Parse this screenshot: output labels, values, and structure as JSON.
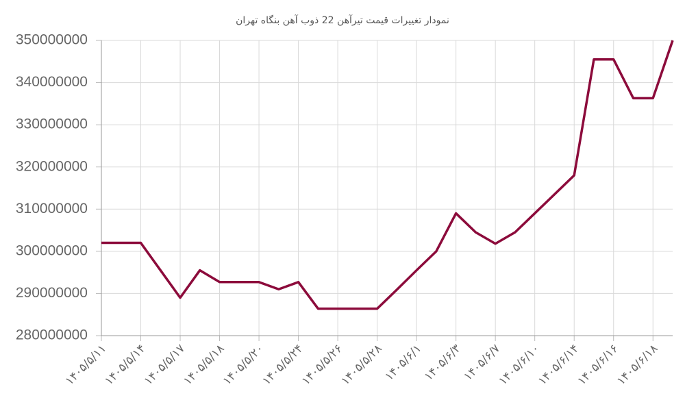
{
  "chart_data": {
    "type": "line",
    "title": "نمودار تغییرات قیمت تیرآهن 22 ذوب آهن بنگاه تهران",
    "categories": [
      "۱۴۰۵/۵/۱۱",
      null,
      "۱۴۰۵/۵/۱۴",
      null,
      "۱۴۰۵/۵/۱۷",
      null,
      "۱۴۰۵/۵/۱۸",
      null,
      "۱۴۰۵/۵/۲۰",
      null,
      "۱۴۰۵/۵/۲۴",
      null,
      "۱۴۰۵/۵/۲۶",
      null,
      "۱۴۰۵/۵/۲۸",
      null,
      "۱۴۰۵/۶/۱",
      null,
      "۱۴۰۵/۶/۳",
      null,
      "۱۴۰۵/۶/۷",
      null,
      "۱۴۰۵/۶/۱۰",
      null,
      "۱۴۰۵/۶/۱۴",
      null,
      "۱۴۰۵/۶/۱۶",
      null,
      "۱۴۰۵/۶/۱۸",
      null
    ],
    "values": [
      302000000,
      302000000,
      302000000,
      295500000,
      289000000,
      295500000,
      292700000,
      292700000,
      292700000,
      291000000,
      292700000,
      286400000,
      286400000,
      286400000,
      286400000,
      290900000,
      295500000,
      300000000,
      309000000,
      304500000,
      301800000,
      304500000,
      309000000,
      313500000,
      318000000,
      345500000,
      345500000,
      336300000,
      336300000,
      350000000
    ],
    "color": "#8c0b3b",
    "ylim": [
      280000000,
      350000000
    ],
    "yticks": [
      280000000,
      290000000,
      300000000,
      310000000,
      320000000,
      330000000,
      340000000,
      350000000
    ],
    "grid": true
  }
}
